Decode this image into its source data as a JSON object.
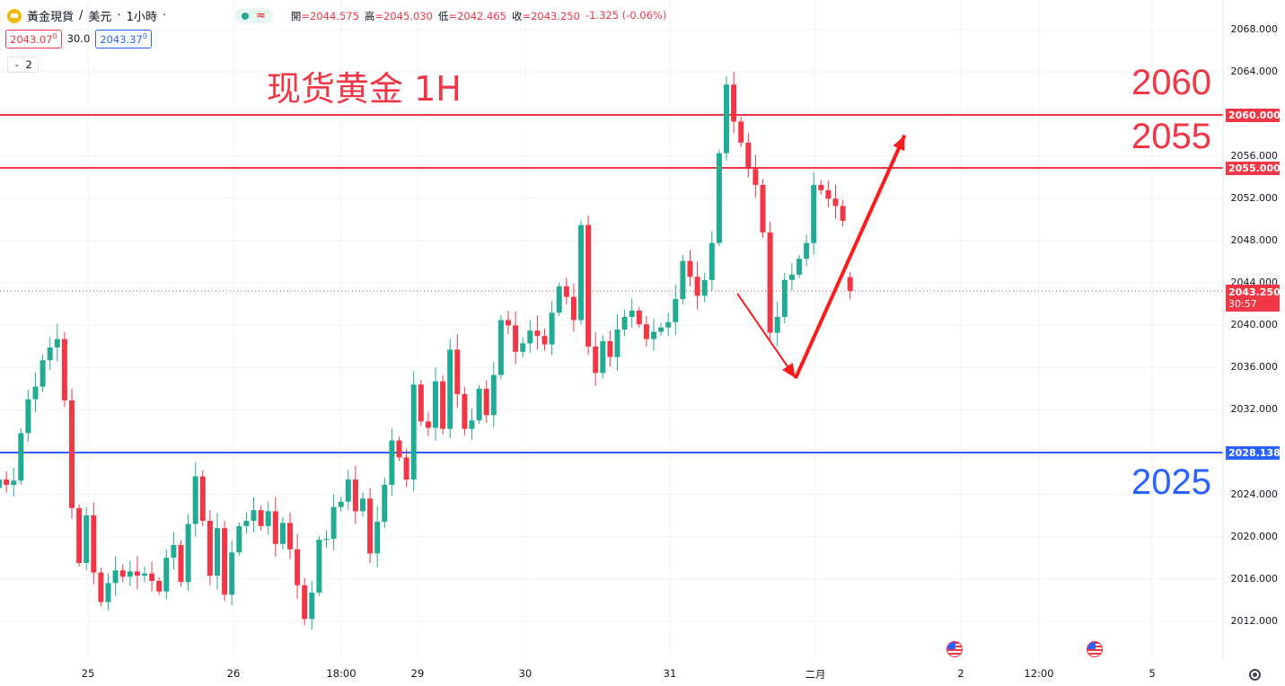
{
  "legend": {
    "symbol": "黃金現貨",
    "sep1": "/",
    "currency": "美元",
    "dot1": "·",
    "interval": "1小時",
    "dot2": "·",
    "open_k": "開",
    "open_v": "=2044.575",
    "high_k": "高",
    "high_v": "=2045.030",
    "low_k": "低",
    "low_v": "=2042.465",
    "close_k": "收",
    "close_v": "=2043.250",
    "change": "-1.325 (-0.06%)",
    "wave_icon": "≈"
  },
  "trade": {
    "sell": "2043.07",
    "sell_sup": "0",
    "spread": "30.0",
    "buy": "2043.37",
    "buy_sup": "0"
  },
  "indicator_toggle": {
    "icon": "chevron-down-icon",
    "count": "2"
  },
  "annotation": {
    "title": "现货黄金 1H",
    "level_2060": "2060",
    "level_2055": "2055",
    "level_2025": "2025"
  },
  "colors": {
    "up": "#22ab94",
    "down": "#f23645",
    "resistance": "#f23645",
    "support": "#2962ff",
    "arrow": "#ff1a1a"
  },
  "tags": {
    "r2060": "2060.000",
    "r2055": "2055.000",
    "current": "2043.250",
    "countdown": "30:57",
    "support": "2028.138"
  },
  "time_axis": [
    "25",
    "26",
    "18:00",
    "29",
    "30",
    "31",
    "二月",
    "2",
    "12:00",
    "5"
  ],
  "chart_data": {
    "type": "candlestick",
    "title": "现货黄金 1H",
    "symbol": "黃金現貨 / 美元 · 1小時",
    "y_ticks": [
      2012,
      2016,
      2020,
      2024,
      2028,
      2032,
      2036,
      2040,
      2044,
      2048,
      2052,
      2056,
      2060,
      2064,
      2068
    ],
    "y_tick_labels": [
      "2012.000",
      "2016.000",
      "2020.000",
      "2024.000",
      "2028.000",
      "2032.000",
      "2036.000",
      "2040.000",
      "2044.000",
      "2048.000",
      "2052.000",
      "2056.000",
      "2060.000",
      "2064.000",
      "2068.000"
    ],
    "ylim": [
      2010.0,
      2070.8
    ],
    "horizontal_lines": [
      {
        "value": 2060.0,
        "label": "2060.000",
        "color": "#f23645"
      },
      {
        "value": 2055.0,
        "label": "2055.000",
        "color": "#f23645"
      },
      {
        "value": 2028.138,
        "label": "2028.138",
        "color": "#2962ff"
      }
    ],
    "current_price": 2043.25,
    "last_bar": {
      "open": 2044.575,
      "high": 2045.03,
      "low": 2042.465,
      "close": 2043.25
    },
    "projection": [
      {
        "bar": 101.5,
        "price": 2043.0
      },
      {
        "bar": 109.5,
        "price": 2035.0
      },
      {
        "bar": 124.5,
        "price": 2058.0
      }
    ],
    "bars_start_close": 2024.6,
    "moves": [
      0.8,
      -0.5,
      0.4,
      4.5,
      3.2,
      1.2,
      2.5,
      1.2,
      0.8,
      -5.8,
      -10.2,
      -5.2,
      4.5,
      -5.4,
      -2.8,
      1.8,
      1.2,
      -0.6,
      0.5,
      -0.4,
      0.2,
      -0.7,
      -1.0,
      3.2,
      1.2,
      -3.5,
      5.5,
      4.5,
      -4.2,
      -5.2,
      4.5,
      -6.3,
      4.0,
      2.5,
      0.5,
      1.0,
      -1.5,
      1.4,
      -3.1,
      2.0,
      -2.5,
      -3.4,
      -3.2,
      2.5,
      5.0,
      0.1,
      3.0,
      0.5,
      2.1,
      -3.0,
      1.2,
      -5.2,
      3.0,
      3.5,
      4.2,
      -1.6,
      -2.1,
      9.0,
      -3.5,
      -0.6,
      4.4,
      -4.5,
      7.5,
      -4.2,
      -3.3,
      0.8,
      3.0,
      -2.5,
      3.8,
      5.2,
      -0.5,
      -2.5,
      0.8,
      1.2,
      -0.5,
      -0.8,
      3.0,
      2.5,
      -1.0,
      -2.2,
      9.0,
      -11.5,
      -2.5,
      3.0,
      -1.5,
      2.6,
      1.2,
      0.6,
      -1.3,
      -1.4,
      0.7,
      0.4,
      0.5,
      2.2,
      3.6,
      -1.5,
      -1.8,
      1.5,
      3.5,
      8.5,
      6.5,
      -3.5,
      -2.0,
      -2.5,
      -1.5,
      -4.5,
      -9.5,
      1.5,
      3.5,
      0.5,
      1.5,
      1.5,
      5.5,
      -0.5,
      -0.8,
      -0.7,
      -1.4
    ]
  }
}
